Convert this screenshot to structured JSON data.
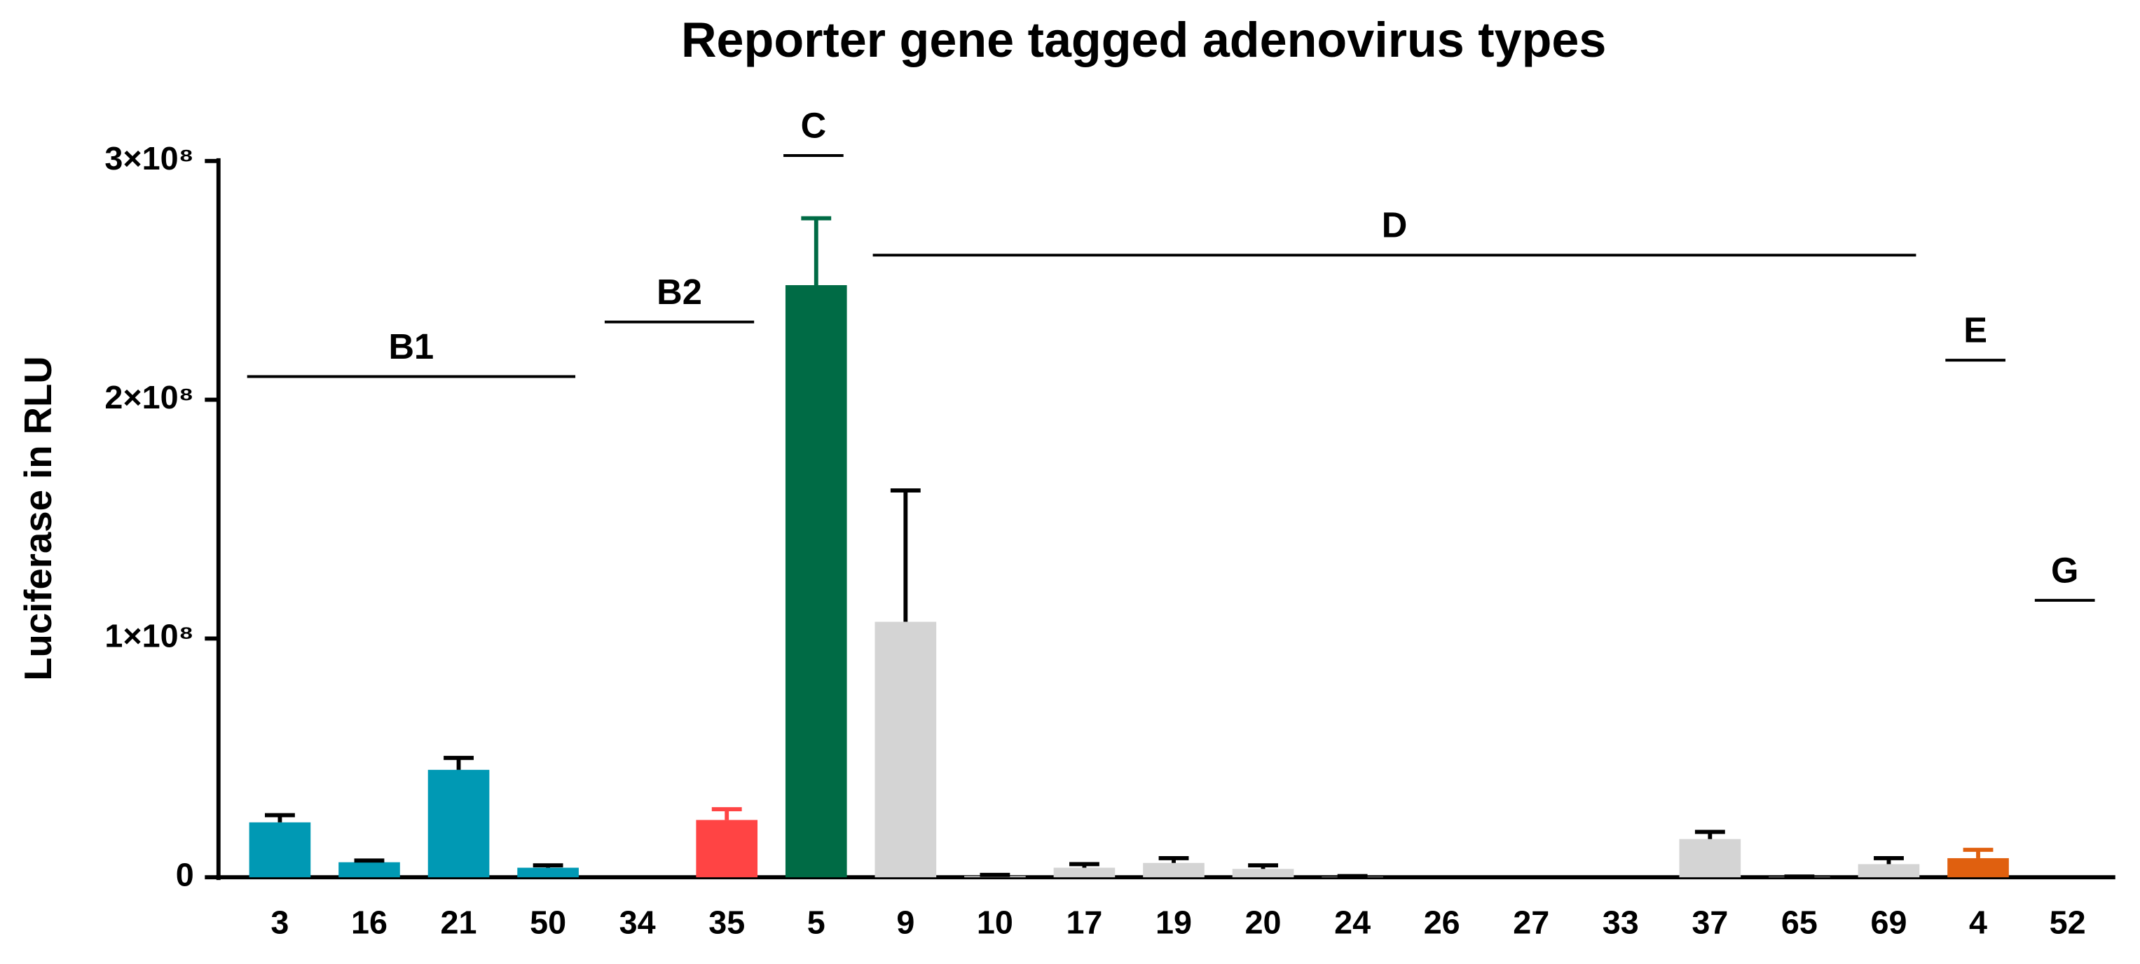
{
  "chart_data": {
    "type": "bar",
    "title": "Reporter gene tagged adenovirus types",
    "y_label": "Luciferase in RLU",
    "categories": [
      "3",
      "16",
      "21",
      "50",
      "34",
      "35",
      "5",
      "9",
      "10",
      "17",
      "19",
      "20",
      "24",
      "26",
      "27",
      "33",
      "37",
      "65",
      "69",
      "4",
      "52"
    ],
    "values": [
      23000000,
      6300000,
      45000000,
      4000000,
      0,
      24000000,
      248000000,
      107000000,
      500000,
      4000000,
      6000000,
      3500000,
      200000,
      0,
      0,
      0,
      16000000,
      200000,
      5500000,
      8000000,
      0
    ],
    "errors": [
      3000000,
      700000,
      5000000,
      1000000,
      0,
      4500000,
      28000000,
      55000000,
      500000,
      1500000,
      2000000,
      1500000,
      300000,
      0,
      0,
      0,
      3000000,
      100000,
      2500000,
      3500000,
      0
    ],
    "colors": [
      "#0099b4",
      "#0099b4",
      "#0099b4",
      "#0099b4",
      "#0099b4",
      "#ff4444",
      "#006b45",
      "#d4d4d4",
      "#d4d4d4",
      "#d4d4d4",
      "#d4d4d4",
      "#d4d4d4",
      "#d4d4d4",
      "#d4d4d4",
      "#d4d4d4",
      "#d4d4d4",
      "#d4d4d4",
      "#d4d4d4",
      "#d4d4d4",
      "#e0600f",
      "#808080"
    ],
    "error_colors": [
      "#000000",
      "#000000",
      "#000000",
      "#000000",
      "#000000",
      "#ff4444",
      "#006b45",
      "#000000",
      "#000000",
      "#000000",
      "#000000",
      "#000000",
      "#000000",
      "#000000",
      "#000000",
      "#000000",
      "#000000",
      "#000000",
      "#000000",
      "#e0600f",
      "#000000"
    ],
    "ylim": [
      0,
      300000000
    ],
    "yticks": [
      0,
      {
        "value": 100000000,
        "label": "1×10⁸"
      },
      {
        "value": 200000000,
        "label": "2×10⁸"
      },
      {
        "value": 300000000,
        "label": "3×10⁸"
      }
    ],
    "groups": [
      {
        "label": "B1",
        "categories": [
          "3",
          "16",
          "21",
          "50"
        ]
      },
      {
        "label": "B2",
        "categories": [
          "34",
          "35"
        ]
      },
      {
        "label": "C",
        "categories": [
          "5"
        ]
      },
      {
        "label": "D",
        "categories": [
          "9",
          "10",
          "17",
          "19",
          "20",
          "24",
          "26",
          "27",
          "33",
          "37",
          "65",
          "69"
        ]
      },
      {
        "label": "E",
        "categories": [
          "4"
        ]
      },
      {
        "label": "G",
        "categories": [
          "52"
        ]
      }
    ]
  }
}
